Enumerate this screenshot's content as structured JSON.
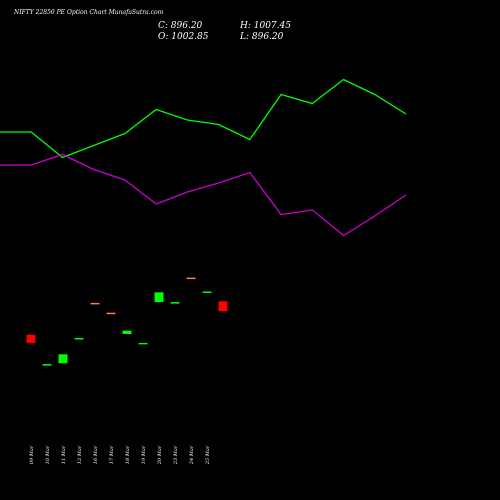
{
  "chart_data": {
    "type": "candlestick",
    "title": "NIFTY 22850 PE Option Chart MunafaSutra.com",
    "ohlc_readout": {
      "close": "C: 896.20",
      "high": "H: 1007.45",
      "open": "O: 1002.85",
      "low": "L: 896.20"
    },
    "categories": [
      "09 Mar",
      "10 Mar",
      "11 Mar",
      "12 Mar",
      "16 Mar",
      "17 Mar",
      "18 Mar",
      "19 Mar",
      "20 Mar",
      "23 Mar",
      "24 Mar",
      "25 Mar"
    ],
    "candles": [
      {
        "open": 1010,
        "close": 1000,
        "color": "#ff0000"
      },
      {
        "open": 974,
        "close": 973,
        "color": "#00ff00"
      },
      {
        "open": 975,
        "close": 986,
        "color": "#00ff00"
      },
      {
        "open": 1005,
        "close": 1006,
        "color": "#00ff00"
      },
      {
        "open": 1049,
        "close": 1048,
        "color": "#ff7f50"
      },
      {
        "open": 1037,
        "close": 1036,
        "color": "#ff7f50"
      },
      {
        "open": 1011,
        "close": 1015,
        "color": "#00ff00"
      },
      {
        "open": 1000,
        "close": 999,
        "color": "#00ff00"
      },
      {
        "open": 1050,
        "close": 1062,
        "color": "#00ff00"
      },
      {
        "open": 1050,
        "close": 1049,
        "color": "#00ff00"
      },
      {
        "open": 1080,
        "close": 1079,
        "color": "#ff7f50"
      },
      {
        "open": 1063,
        "close": 1062,
        "color": "#00ff00"
      },
      {
        "open": 1051,
        "close": 1039,
        "color": "#ff0000"
      }
    ],
    "y_range": [
      930,
      1120
    ],
    "line_series": [
      {
        "color": "#00ff00",
        "values": [
          72,
          72,
          55,
          63,
          71,
          87,
          80,
          77,
          67,
          97,
          91,
          107,
          97,
          84
        ]
      },
      {
        "color": "#cc00cc",
        "values": [
          50,
          50,
          57,
          47,
          40,
          24,
          32,
          38,
          45,
          17,
          20,
          3,
          16,
          30
        ]
      }
    ],
    "line_range": [
      0,
      120
    ],
    "grid": false,
    "colors": {
      "background": "#000000",
      "text": "#ffffff"
    }
  }
}
